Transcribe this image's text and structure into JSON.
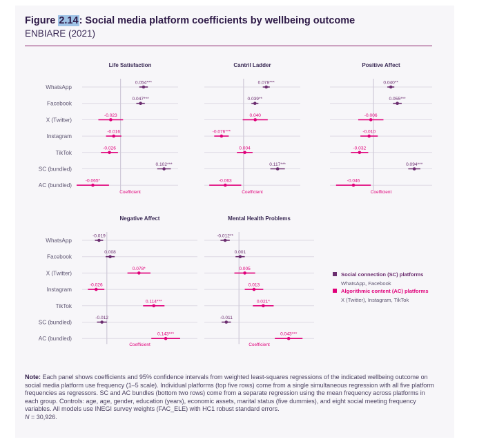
{
  "figure": {
    "number": "2.14",
    "title_rest": ": Social media platform coefficients by wellbeing outcome",
    "subtitle": "ENBIARE (2021)"
  },
  "colors": {
    "sc": "#6b2d6f",
    "ac": "#e0007a",
    "grid": "#ddd9e4",
    "zero": "#cfc9d8",
    "text": "#5c5470"
  },
  "legend": {
    "sc_title": "Social connection (SC) platforms",
    "sc_sub": "WhatsApp, Facebook",
    "ac_title": "Algorithmic content (AC) platforms",
    "ac_sub": "X (Twitter), Instagram, TikTok"
  },
  "note": {
    "label": "Note:",
    "text": " Each panel shows coefficients and 95% confidence intervals from weighted least-squares regressions of the indicated wellbeing outcome on social media platform use frequency (1–5 scale). Individual platforms (top five rows) come from a single simultaneous regression with all five platform frequencies as regressors. SC and AC bundles (bottom two rows) come from a separate regression using the mean frequency across platforms in each group. Controls: age, age, gender, education (years), economic assets, marital status (five dummies), and eight social meeting frequency variables. All models use INEGI survey weights (FAC_ELE) with HC1 robust standard errors.",
    "n_label": "N",
    "n_text": " = 30,926."
  },
  "chart_data": {
    "type": "forest",
    "rows": [
      "WhatsApp",
      "Facebook",
      "X (Twitter)",
      "Instagram",
      "TikTok",
      "SC (bundled)",
      "AC (bundled)"
    ],
    "row_group": [
      "sc",
      "sc",
      "ac",
      "ac",
      "ac",
      "sc",
      "ac"
    ],
    "xlabel": "Coefficient",
    "panels": [
      {
        "title": "Life Satisfaction",
        "xlim": [
          -0.09,
          0.135
        ],
        "points": [
          {
            "value": 0.054,
            "ci": [
              0.044,
              0.064
            ],
            "label": "0.054***"
          },
          {
            "value": 0.047,
            "ci": [
              0.037,
              0.057
            ],
            "label": "0.047***"
          },
          {
            "value": -0.023,
            "ci": [
              -0.052,
              0.006
            ],
            "label": "-0.023"
          },
          {
            "value": -0.016,
            "ci": [
              -0.034,
              0.002
            ],
            "label": "-0.016"
          },
          {
            "value": -0.026,
            "ci": [
              -0.046,
              -0.006
            ],
            "label": "-0.026"
          },
          {
            "value": 0.102,
            "ci": [
              0.086,
              0.118
            ],
            "label": "0.102***"
          },
          {
            "value": -0.065,
            "ci": [
              -0.103,
              -0.027
            ],
            "label": "-0.065*"
          }
        ]
      },
      {
        "title": "Cantril Ladder",
        "xlim": [
          -0.135,
          0.195
        ],
        "points": [
          {
            "value": 0.078,
            "ci": [
              0.066,
              0.09
            ],
            "label": "0.078***"
          },
          {
            "value": 0.039,
            "ci": [
              0.027,
              0.051
            ],
            "label": "0.039**"
          },
          {
            "value": 0.04,
            "ci": [
              -0.003,
              0.083
            ],
            "label": "0.040"
          },
          {
            "value": -0.076,
            "ci": [
              -0.101,
              -0.051
            ],
            "label": "-0.076***"
          },
          {
            "value": 0.004,
            "ci": [
              -0.023,
              0.031
            ],
            "label": "0.004"
          },
          {
            "value": 0.117,
            "ci": [
              0.092,
              0.142
            ],
            "label": "0.117***"
          },
          {
            "value": -0.063,
            "ci": [
              -0.118,
              -0.008
            ],
            "label": "-0.063"
          }
        ]
      },
      {
        "title": "Positive Affect",
        "xlim": [
          -0.1,
          0.135
        ],
        "points": [
          {
            "value": 0.04,
            "ci": [
              0.032,
              0.048
            ],
            "label": "0.040**"
          },
          {
            "value": 0.055,
            "ci": [
              0.045,
              0.065
            ],
            "label": "0.055***"
          },
          {
            "value": -0.006,
            "ci": [
              -0.035,
              0.023
            ],
            "label": "-0.006"
          },
          {
            "value": -0.01,
            "ci": [
              -0.03,
              0.01
            ],
            "label": "-0.010"
          },
          {
            "value": -0.032,
            "ci": [
              -0.052,
              -0.012
            ],
            "label": "-0.032"
          },
          {
            "value": 0.094,
            "ci": [
              0.08,
              0.108
            ],
            "label": "0.094***"
          },
          {
            "value": -0.046,
            "ci": [
              -0.086,
              -0.006
            ],
            "label": "-0.046"
          }
        ]
      },
      {
        "title": "Negative Affect",
        "xlim": [
          -0.06,
          0.22
        ],
        "points": [
          {
            "value": -0.019,
            "ci": [
              -0.029,
              -0.009
            ],
            "label": "-0.019"
          },
          {
            "value": 0.008,
            "ci": [
              -0.003,
              0.019
            ],
            "label": "0.008"
          },
          {
            "value": 0.078,
            "ci": [
              0.05,
              0.106
            ],
            "label": "0.078*"
          },
          {
            "value": -0.026,
            "ci": [
              -0.046,
              -0.006
            ],
            "label": "-0.026"
          },
          {
            "value": 0.114,
            "ci": [
              0.088,
              0.14
            ],
            "label": "0.114***"
          },
          {
            "value": -0.012,
            "ci": [
              -0.024,
              0.0
            ],
            "label": "-0.012"
          },
          {
            "value": 0.143,
            "ci": [
              0.108,
              0.178
            ],
            "label": "0.143***"
          }
        ]
      },
      {
        "title": "Mental Health Problems",
        "xlim": [
          -0.03,
          0.065
        ],
        "points": [
          {
            "value": -0.012,
            "ci": [
              -0.016,
              -0.008
            ],
            "label": "-0.012**"
          },
          {
            "value": 0.001,
            "ci": [
              -0.003,
              0.005
            ],
            "label": "0.001"
          },
          {
            "value": 0.005,
            "ci": [
              -0.004,
              0.014
            ],
            "label": "0.005"
          },
          {
            "value": 0.013,
            "ci": [
              0.005,
              0.021
            ],
            "label": "0.013"
          },
          {
            "value": 0.021,
            "ci": [
              0.012,
              0.03
            ],
            "label": "0.021*"
          },
          {
            "value": -0.011,
            "ci": [
              -0.015,
              -0.007
            ],
            "label": "-0.011"
          },
          {
            "value": 0.043,
            "ci": [
              0.031,
              0.055
            ],
            "label": "0.043***"
          }
        ]
      }
    ]
  }
}
